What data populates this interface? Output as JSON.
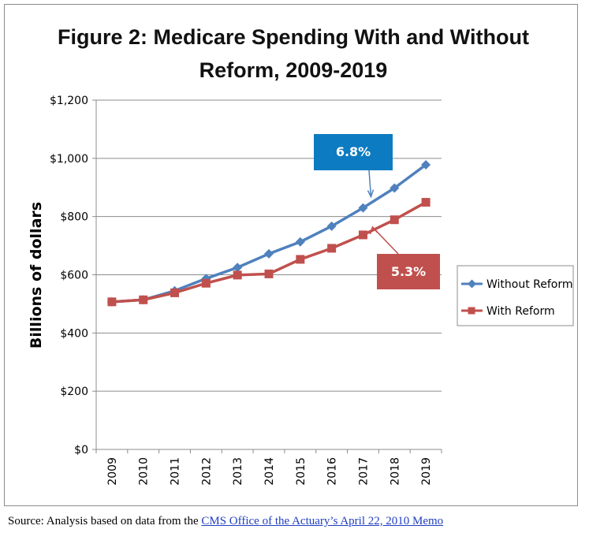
{
  "chart_data": {
    "type": "line",
    "title_lines": [
      "Figure 2:  Medicare Spending With and Without",
      "Reform, 2009-2019"
    ],
    "ylabel": "Billions of dollars",
    "xlabel": "",
    "ylim": [
      0,
      1200
    ],
    "y_ticks": [
      0,
      200,
      400,
      600,
      800,
      1000,
      1200
    ],
    "y_tick_labels": [
      "$0",
      "$200",
      "$400",
      "$600",
      "$800",
      "$1,000",
      "$1,200"
    ],
    "categories": [
      "2009",
      "2010",
      "2011",
      "2012",
      "2013",
      "2014",
      "2015",
      "2016",
      "2017",
      "2018",
      "2019"
    ],
    "grid": "horizontal",
    "legend_position": "right",
    "series": [
      {
        "name": "Without Reform",
        "color": "#4f81bd",
        "marker": "diamond",
        "values": [
          507,
          514,
          545,
          587,
          625,
          672,
          713,
          767,
          830,
          898,
          978
        ]
      },
      {
        "name": "With Reform",
        "color": "#c0504d",
        "marker": "square",
        "values": [
          507,
          514,
          538,
          571,
          599,
          603,
          653,
          691,
          737,
          789,
          849
        ]
      }
    ],
    "annotations": [
      {
        "text": "6.8%",
        "color": "#0c7bc2",
        "series": "Without Reform"
      },
      {
        "text": "5.3%",
        "color": "#c0504d",
        "series": "With Reform"
      }
    ]
  },
  "source": {
    "prefix": "Source: Analysis based on data from the ",
    "link_text": "CMS Office of the Actuary’s April 22, 2010 Memo"
  }
}
